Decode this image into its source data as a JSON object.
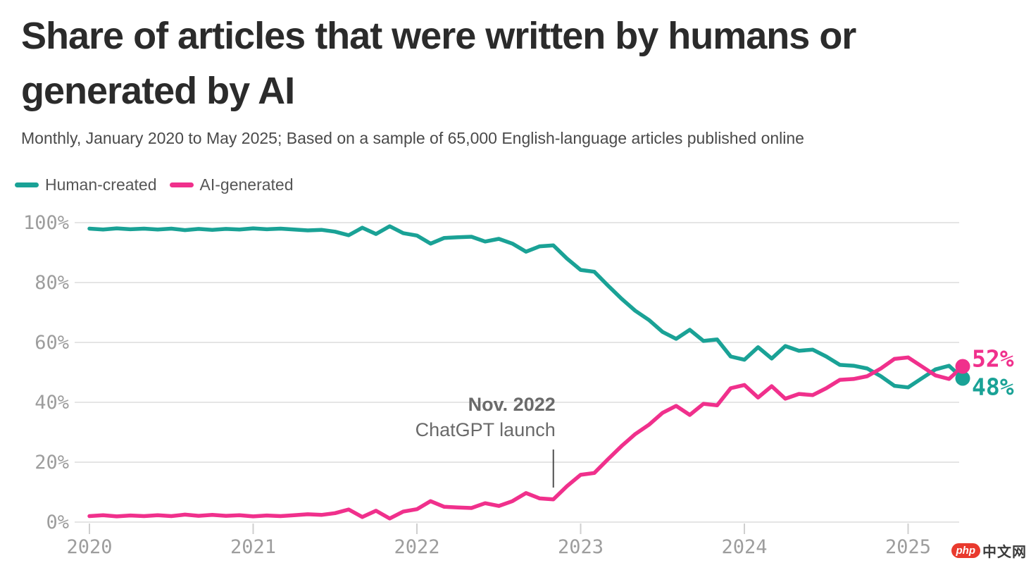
{
  "header": {
    "title_lines": [
      "Share of articles that were written by humans or",
      "generated by AI"
    ],
    "subtitle": "Monthly, January 2020 to May 2025; Based on a sample of 65,000 English-language articles published online"
  },
  "legend": {
    "items": [
      {
        "label": "Human-created",
        "color": "#1AA296"
      },
      {
        "label": "AI-generated",
        "color": "#F0308C"
      }
    ]
  },
  "watermark": {
    "badge": "php",
    "text": "中文网"
  },
  "chart_data": {
    "type": "line",
    "title": "Share of articles that were written by humans or generated by AI",
    "subtitle": "Monthly, January 2020 to May 2025; Based on a sample of 65,000 English-language articles published online",
    "frequency": "monthly",
    "x_start": "2020-01",
    "x_end": "2025-05",
    "x_tick_labels": [
      "2020",
      "2021",
      "2022",
      "2023",
      "2024",
      "2025"
    ],
    "ylim": [
      0,
      100
    ],
    "y_tick_labels": [
      "0%",
      "20%",
      "40%",
      "60%",
      "80%",
      "100%"
    ],
    "grid": "horizontal",
    "legend_position": "top-left",
    "colors": {
      "grid": "#e5e5e5",
      "tick_text": "#9d9d9d",
      "annotation_text": "#6a6a6a"
    },
    "series": [
      {
        "name": "Human-created",
        "color": "#1AA296",
        "end_label": "48%",
        "values": [
          98.0,
          97.7,
          98.1,
          97.8,
          98.0,
          97.7,
          98.0,
          97.5,
          97.9,
          97.6,
          97.9,
          97.7,
          98.1,
          97.8,
          98.0,
          97.7,
          97.4,
          97.6,
          97.0,
          95.8,
          98.3,
          96.2,
          98.8,
          96.5,
          95.7,
          93.0,
          94.9,
          95.1,
          95.3,
          93.7,
          94.6,
          93.0,
          90.3,
          92.1,
          92.4,
          88.0,
          84.2,
          83.6,
          79.0,
          74.6,
          70.6,
          67.5,
          63.5,
          61.2,
          64.2,
          60.5,
          61.0,
          55.3,
          54.2,
          58.4,
          54.6,
          58.8,
          57.2,
          57.6,
          55.3,
          52.5,
          52.2,
          51.3,
          48.7,
          45.5,
          45.0,
          48.0,
          51.0,
          52.2,
          48.0
        ]
      },
      {
        "name": "AI-generated",
        "color": "#F0308C",
        "end_label": "52%",
        "values": [
          2.0,
          2.3,
          1.9,
          2.2,
          2.0,
          2.3,
          2.0,
          2.5,
          2.1,
          2.4,
          2.1,
          2.3,
          1.9,
          2.2,
          2.0,
          2.3,
          2.6,
          2.4,
          3.0,
          4.2,
          1.7,
          3.8,
          1.2,
          3.5,
          4.3,
          7.0,
          5.1,
          4.9,
          4.7,
          6.3,
          5.4,
          7.0,
          9.7,
          7.9,
          7.6,
          12.0,
          15.8,
          16.4,
          21.0,
          25.4,
          29.4,
          32.5,
          36.5,
          38.8,
          35.8,
          39.5,
          39.0,
          44.7,
          45.8,
          41.6,
          45.4,
          41.2,
          42.8,
          42.4,
          44.7,
          47.5,
          47.8,
          48.7,
          51.3,
          54.5,
          55.0,
          52.0,
          49.0,
          47.8,
          52.0
        ]
      }
    ],
    "annotation": {
      "x": "2022-11",
      "month_index": 34,
      "line1": "Nov. 2022",
      "line2": "ChatGPT launch"
    }
  }
}
